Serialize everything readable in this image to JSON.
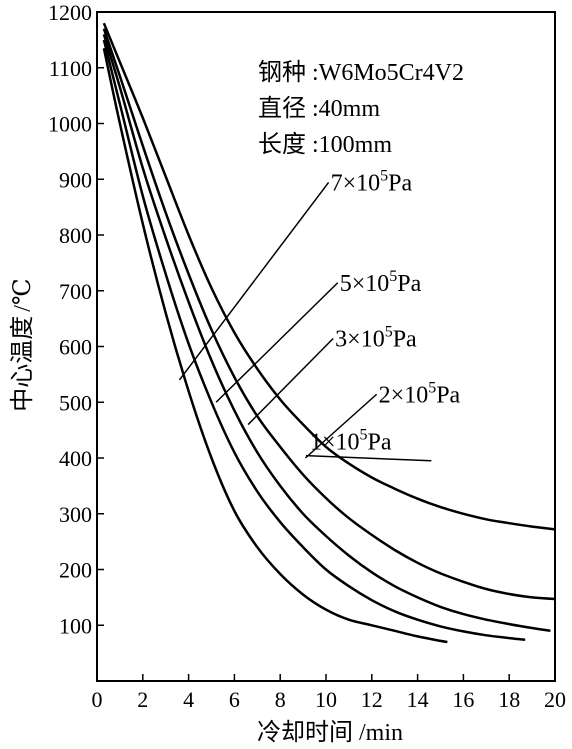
{
  "chart_data": {
    "type": "line",
    "xlabel": {
      "zh": "冷却时间",
      "unit": "/min"
    },
    "ylabel": {
      "zh": "中心温度",
      "unit": "/℃"
    },
    "xlim": [
      0,
      20
    ],
    "ylim": [
      0,
      1200
    ],
    "xticks": [
      0,
      2,
      4,
      6,
      8,
      10,
      12,
      14,
      16,
      18,
      20
    ],
    "yticks": [
      100,
      200,
      300,
      400,
      500,
      600,
      700,
      800,
      900,
      1000,
      1100,
      1200
    ],
    "grid": false,
    "info": [
      {
        "key": "钢种",
        "value": "W6Mo5Cr4V2"
      },
      {
        "key": "直径",
        "value": "40mm"
      },
      {
        "key": "长度",
        "value": "100mm"
      }
    ],
    "series": [
      {
        "name": "1×10^5Pa",
        "mantissa": "1×10",
        "exponent": "5",
        "unit": "Pa",
        "points": [
          [
            0.3,
            1180
          ],
          [
            1,
            1110
          ],
          [
            2,
            1010
          ],
          [
            3,
            905
          ],
          [
            4,
            800
          ],
          [
            5,
            705
          ],
          [
            6,
            625
          ],
          [
            7,
            560
          ],
          [
            8,
            505
          ],
          [
            9,
            460
          ],
          [
            10,
            420
          ],
          [
            11,
            390
          ],
          [
            12,
            365
          ],
          [
            13,
            345
          ],
          [
            14,
            327
          ],
          [
            15,
            312
          ],
          [
            16,
            300
          ],
          [
            17,
            290
          ],
          [
            18,
            283
          ],
          [
            19,
            277
          ],
          [
            20,
            272
          ]
        ],
        "label_at": [
          9.3,
          415
        ],
        "pointer_to": [
          14.6,
          395
        ]
      },
      {
        "name": "2×10^5Pa",
        "mantissa": "2×10",
        "exponent": "5",
        "unit": "Pa",
        "points": [
          [
            0.3,
            1170
          ],
          [
            1,
            1085
          ],
          [
            2,
            960
          ],
          [
            3,
            840
          ],
          [
            4,
            730
          ],
          [
            5,
            630
          ],
          [
            6,
            545
          ],
          [
            7,
            475
          ],
          [
            8,
            420
          ],
          [
            9,
            370
          ],
          [
            10,
            328
          ],
          [
            11,
            292
          ],
          [
            12,
            262
          ],
          [
            13,
            235
          ],
          [
            14,
            212
          ],
          [
            15,
            193
          ],
          [
            16,
            178
          ],
          [
            17,
            165
          ],
          [
            18,
            156
          ],
          [
            19,
            150
          ],
          [
            20,
            147
          ]
        ],
        "label_at": [
          12.3,
          500
        ],
        "pointer_to": [
          9.1,
          400
        ]
      },
      {
        "name": "3×10^5Pa",
        "mantissa": "3×10",
        "exponent": "5",
        "unit": "Pa",
        "points": [
          [
            0.3,
            1160
          ],
          [
            1,
            1065
          ],
          [
            2,
            920
          ],
          [
            3,
            795
          ],
          [
            4,
            680
          ],
          [
            5,
            575
          ],
          [
            6,
            485
          ],
          [
            7,
            410
          ],
          [
            8,
            350
          ],
          [
            9,
            300
          ],
          [
            10,
            260
          ],
          [
            11,
            225
          ],
          [
            12,
            195
          ],
          [
            13,
            170
          ],
          [
            14,
            150
          ],
          [
            15,
            133
          ],
          [
            16,
            120
          ],
          [
            17,
            110
          ],
          [
            18,
            102
          ],
          [
            19,
            95
          ],
          [
            19.8,
            90
          ]
        ],
        "label_at": [
          10.4,
          600
        ],
        "pointer_to": [
          6.6,
          460
        ]
      },
      {
        "name": "5×10^5Pa",
        "mantissa": "5×10",
        "exponent": "5",
        "unit": "Pa",
        "points": [
          [
            0.3,
            1150
          ],
          [
            1,
            1035
          ],
          [
            2,
            870
          ],
          [
            3,
            730
          ],
          [
            4,
            605
          ],
          [
            5,
            500
          ],
          [
            6,
            410
          ],
          [
            7,
            340
          ],
          [
            8,
            285
          ],
          [
            9,
            240
          ],
          [
            10,
            200
          ],
          [
            11,
            170
          ],
          [
            12,
            145
          ],
          [
            13,
            125
          ],
          [
            14,
            110
          ],
          [
            15,
            98
          ],
          [
            16,
            89
          ],
          [
            17,
            82
          ],
          [
            18,
            77
          ],
          [
            18.7,
            74
          ]
        ],
        "label_at": [
          10.6,
          700
        ],
        "pointer_to": [
          5.2,
          500
        ]
      },
      {
        "name": "7×10^5Pa",
        "mantissa": "7×10",
        "exponent": "5",
        "unit": "Pa",
        "points": [
          [
            0.3,
            1135
          ],
          [
            1,
            1000
          ],
          [
            2,
            820
          ],
          [
            3,
            660
          ],
          [
            4,
            520
          ],
          [
            5,
            400
          ],
          [
            6,
            305
          ],
          [
            7,
            240
          ],
          [
            8,
            192
          ],
          [
            9,
            155
          ],
          [
            10,
            128
          ],
          [
            11,
            110
          ],
          [
            12,
            100
          ],
          [
            13,
            90
          ],
          [
            14,
            80
          ],
          [
            15,
            72
          ],
          [
            15.3,
            70
          ]
        ],
        "label_at": [
          10.2,
          880
        ],
        "pointer_to": [
          3.6,
          540
        ]
      }
    ]
  }
}
